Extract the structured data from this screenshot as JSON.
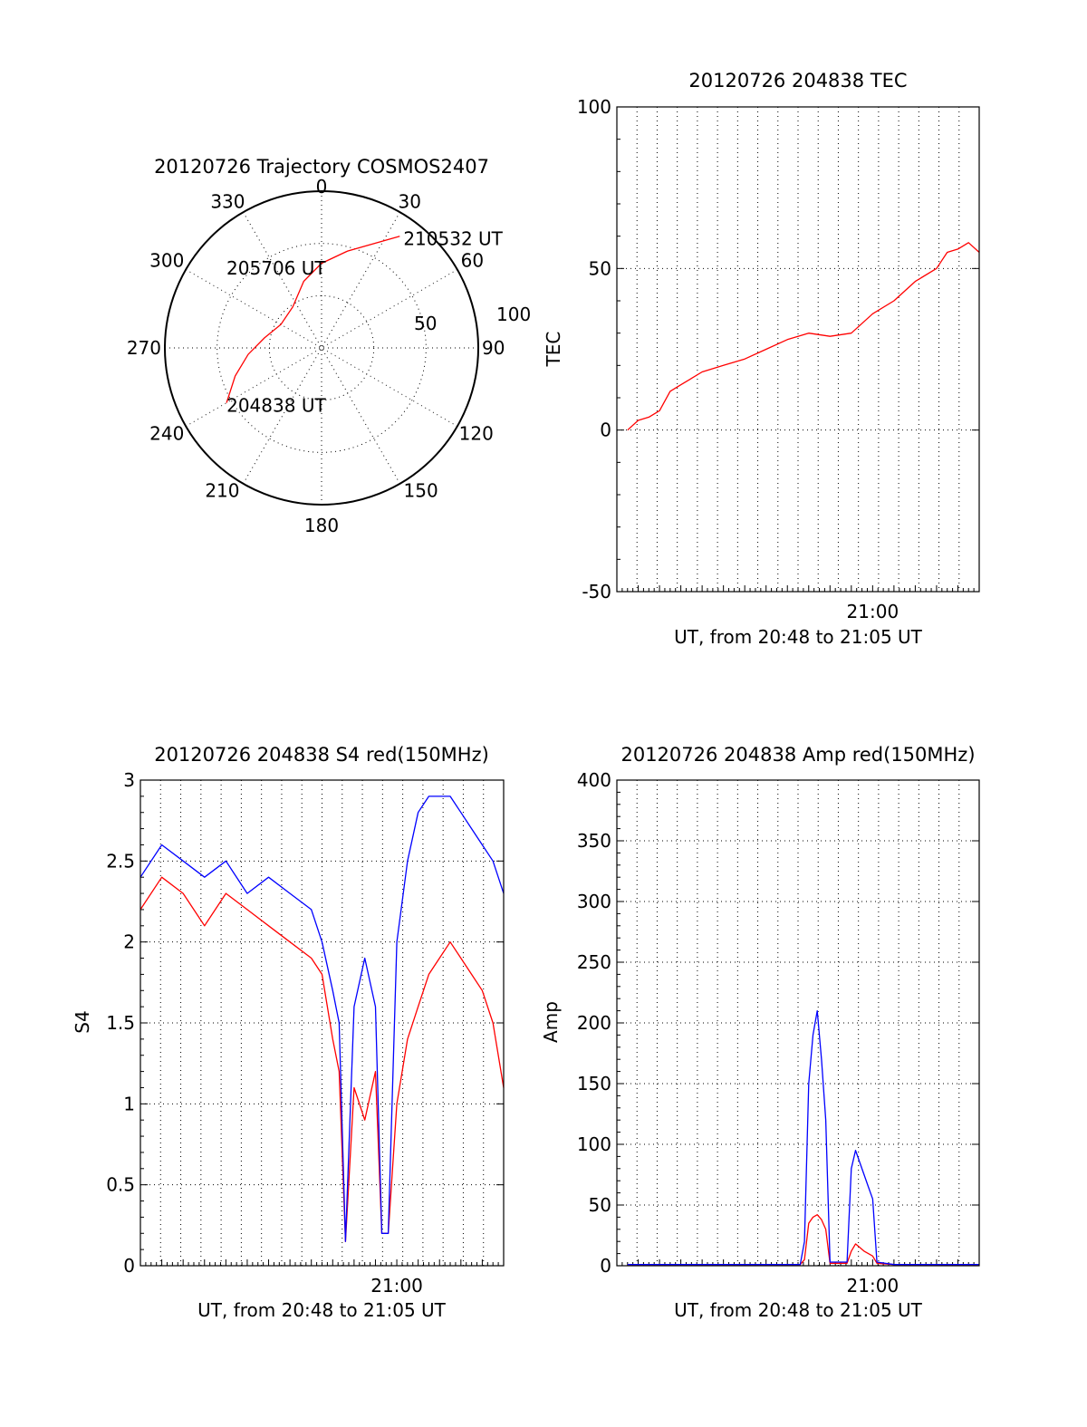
{
  "colors": {
    "red": "#ff0000",
    "blue": "#0000ff",
    "axis": "#000000",
    "background": "#ffffff"
  },
  "chart_data": [
    {
      "id": "trajectory",
      "type": "polar",
      "title": "20120726 Trajectory COSMOS2407",
      "angle_labels": [
        "0",
        "30",
        "60",
        "90",
        "120",
        "150",
        "180",
        "210",
        "240",
        "270",
        "300",
        "330"
      ],
      "radius_labels": [
        "50",
        "100"
      ],
      "radius_range": [
        0,
        100
      ],
      "grid": true,
      "series": [
        {
          "color": "#ff0000",
          "points": [
            {
              "azimuth": 240,
              "elev": 30
            },
            {
              "azimuth": 252,
              "elev": 42
            },
            {
              "azimuth": 265,
              "elev": 53
            },
            {
              "azimuth": 280,
              "elev": 63
            },
            {
              "azimuth": 300,
              "elev": 70
            },
            {
              "azimuth": 325,
              "elev": 68
            },
            {
              "azimuth": 345,
              "elev": 56
            },
            {
              "azimuth": 0,
              "elev": 46
            },
            {
              "azimuth": 15,
              "elev": 36
            },
            {
              "azimuth": 35,
              "elev": 13
            }
          ]
        }
      ],
      "annotations": [
        {
          "text": "210532 UT",
          "azimuth": 35,
          "elev": 13
        },
        {
          "text": "205706 UT",
          "azimuth": 300,
          "elev": 70
        },
        {
          "text": "204838 UT",
          "azimuth": 240,
          "elev": 30
        }
      ]
    },
    {
      "id": "tec",
      "type": "line",
      "title": "20120726 204838 TEC",
      "xlabel": "UT, from 20:48 to 21:05 UT",
      "ylabel": "TEC",
      "xlim": [
        0,
        17
      ],
      "ylim": [
        -50,
        100
      ],
      "yticks": [
        -50,
        0,
        50,
        100
      ],
      "xticks": [
        {
          "label": "21:00",
          "value": 12
        }
      ],
      "grid": true,
      "series": [
        {
          "color": "#ff0000",
          "x": [
            0.5,
            1,
            1.5,
            2,
            2.5,
            3,
            3.5,
            4,
            5,
            6,
            7,
            8,
            9,
            10,
            11,
            12,
            13,
            14,
            15,
            15.5,
            16,
            16.5,
            17
          ],
          "y": [
            0,
            3,
            4,
            6,
            12,
            14,
            16,
            18,
            20,
            22,
            25,
            28,
            30,
            29,
            30,
            36,
            40,
            46,
            50,
            55,
            56,
            58,
            55
          ]
        }
      ]
    },
    {
      "id": "s4",
      "type": "line",
      "title": "20120726 204838 S4 red(150MHz)",
      "xlabel": "UT, from 20:48 to 21:05 UT",
      "ylabel": "S4",
      "xlim": [
        0,
        17
      ],
      "ylim": [
        0,
        3
      ],
      "yticks": [
        0,
        0.5,
        1,
        1.5,
        2,
        2.5,
        3
      ],
      "xticks": [
        {
          "label": "21:00",
          "value": 12
        }
      ],
      "grid": true,
      "series": [
        {
          "color": "#ff0000",
          "x": [
            0,
            1,
            2,
            3,
            4,
            5,
            6,
            7,
            8,
            8.5,
            9,
            9.3,
            9.6,
            10,
            10.5,
            11,
            11.3,
            11.6,
            12,
            12.5,
            13,
            13.5,
            14,
            14.5,
            15,
            15.5,
            16,
            16.5,
            17
          ],
          "y": [
            2.2,
            2.4,
            2.3,
            2.1,
            2.3,
            2.2,
            2.1,
            2.0,
            1.9,
            1.8,
            1.4,
            1.2,
            0.15,
            1.1,
            0.9,
            1.2,
            0.2,
            0.2,
            1.0,
            1.4,
            1.6,
            1.8,
            1.9,
            2.0,
            1.9,
            1.8,
            1.7,
            1.5,
            1.1
          ]
        },
        {
          "color": "#0000ff",
          "x": [
            0,
            1,
            2,
            3,
            4,
            5,
            6,
            7,
            8,
            8.5,
            9,
            9.3,
            9.6,
            10,
            10.5,
            11,
            11.3,
            11.6,
            12,
            12.5,
            13,
            13.5,
            14,
            14.5,
            15,
            15.5,
            16,
            16.5,
            17
          ],
          "y": [
            2.4,
            2.6,
            2.5,
            2.4,
            2.5,
            2.3,
            2.4,
            2.3,
            2.2,
            2.0,
            1.7,
            1.5,
            0.15,
            1.6,
            1.9,
            1.6,
            0.2,
            0.2,
            2.0,
            2.5,
            2.8,
            2.9,
            2.9,
            2.9,
            2.8,
            2.7,
            2.6,
            2.5,
            2.3
          ]
        }
      ]
    },
    {
      "id": "amp",
      "type": "line",
      "title": "20120726 204838 Amp red(150MHz)",
      "xlabel": "UT, from 20:48 to 21:05 UT",
      "ylabel": "Amp",
      "xlim": [
        0,
        17
      ],
      "ylim": [
        0,
        400
      ],
      "yticks": [
        0,
        50,
        100,
        150,
        200,
        250,
        300,
        350,
        400
      ],
      "xticks": [
        {
          "label": "21:00",
          "value": 12
        }
      ],
      "grid": true,
      "series": [
        {
          "color": "#ff0000",
          "x": [
            0.5,
            8.6,
            8.8,
            9.0,
            9.2,
            9.4,
            9.6,
            9.8,
            10,
            10.8,
            11.0,
            11.2,
            11.4,
            11.6,
            11.8,
            12.0,
            12.2,
            13,
            17
          ],
          "y": [
            1,
            1,
            5,
            35,
            40,
            42,
            38,
            30,
            2,
            2,
            12,
            18,
            15,
            12,
            10,
            8,
            2,
            1,
            1
          ]
        },
        {
          "color": "#0000ff",
          "x": [
            0.5,
            8.6,
            8.8,
            9.0,
            9.2,
            9.4,
            9.6,
            9.8,
            10,
            10.8,
            11.0,
            11.2,
            11.4,
            11.6,
            11.8,
            12.0,
            12.2,
            13,
            17
          ],
          "y": [
            1,
            1,
            20,
            150,
            190,
            210,
            170,
            120,
            3,
            3,
            80,
            95,
            85,
            75,
            65,
            55,
            3,
            1,
            1
          ]
        }
      ]
    }
  ]
}
